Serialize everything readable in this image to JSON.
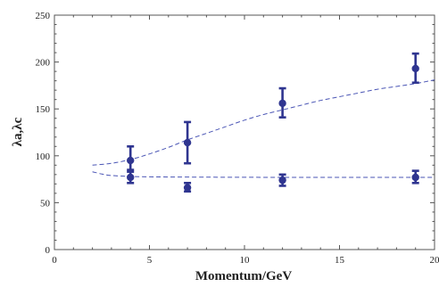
{
  "chart_data": {
    "type": "scatter",
    "xlabel": "Momentum/GeV",
    "ylabel": "λa,λc",
    "xlim": [
      0,
      20
    ],
    "ylim": [
      0,
      250
    ],
    "xticks": [
      "0",
      "5",
      "10",
      "15",
      "20"
    ],
    "yticks": [
      "0",
      "50",
      "100",
      "150",
      "200",
      "250"
    ],
    "marker_color": "#2f3590",
    "curve_color": "#4a55b5",
    "series": [
      {
        "values": [
          {
            "x": 4,
            "y": 95,
            "yerr_low": 85,
            "yerr_high": 110
          },
          {
            "x": 7,
            "y": 114,
            "yerr_low": 92,
            "yerr_high": 136
          },
          {
            "x": 12,
            "y": 156,
            "yerr_low": 141,
            "yerr_high": 172
          },
          {
            "x": 19,
            "y": 193,
            "yerr_low": 178,
            "yerr_high": 209
          }
        ]
      },
      {
        "values": [
          {
            "x": 4,
            "y": 77,
            "yerr_low": 71,
            "yerr_high": 83
          },
          {
            "x": 7,
            "y": 66,
            "yerr_low": 62,
            "yerr_high": 71
          },
          {
            "x": 12,
            "y": 74,
            "yerr_low": 68,
            "yerr_high": 80
          },
          {
            "x": 19,
            "y": 77,
            "yerr_low": 71,
            "yerr_high": 84
          }
        ]
      }
    ],
    "fit_curves": [
      {
        "style": "dashed",
        "x": [
          2,
          3,
          4,
          5,
          6,
          7,
          8,
          9,
          10,
          11,
          12,
          13,
          14,
          15,
          16,
          17,
          18,
          19,
          20
        ],
        "y": [
          90,
          92,
          96,
          102,
          109,
          117,
          124,
          131,
          138,
          144,
          149,
          154,
          159,
          163,
          167,
          171,
          174,
          177,
          181
        ]
      },
      {
        "style": "dashed",
        "x": [
          2,
          2.5,
          3,
          4,
          5,
          6,
          8,
          10,
          12,
          14,
          16,
          18,
          20
        ],
        "y": [
          83,
          80.5,
          79,
          78,
          77.6,
          77.4,
          77.2,
          77.1,
          77,
          77,
          77,
          77,
          77
        ]
      }
    ]
  }
}
